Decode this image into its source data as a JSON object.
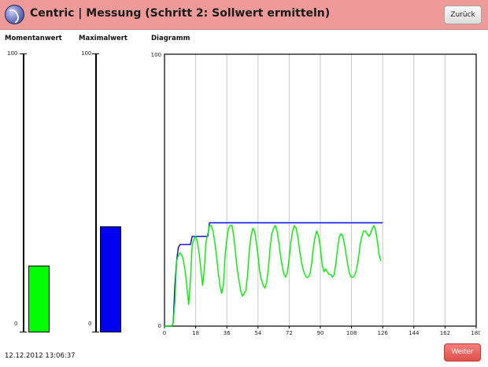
{
  "header": {
    "title": "Centric | Messung (Schritt 2: Sollwert ermitteln)",
    "back_label": "Zurück",
    "logo_icon": "centric-logo-icon",
    "color": "#ee9a98"
  },
  "gauges": {
    "current": {
      "label": "Momentanwert",
      "max_label": "100",
      "min_label": "0",
      "value": 24,
      "color": "#00ff00"
    },
    "maximum": {
      "label": "Maximalwert",
      "max_label": "100",
      "min_label": "0",
      "value": 38,
      "color": "#0000ee"
    }
  },
  "chart_data": {
    "type": "line",
    "title": "Diagramm",
    "xlim": [
      0,
      180
    ],
    "ylim": [
      0,
      100
    ],
    "x_ticks": [
      "0",
      "18",
      "36",
      "54",
      "72",
      "90",
      "108",
      "126",
      "144",
      "162",
      "180"
    ],
    "y_tick_labels": [
      "100",
      "0"
    ],
    "grid": "vertical",
    "series": [
      {
        "color": "#0000ee",
        "points": [
          [
            0,
            0
          ],
          [
            4,
            0
          ],
          [
            5,
            1
          ],
          [
            6,
            15
          ],
          [
            7,
            24
          ],
          [
            8,
            29
          ],
          [
            9,
            30
          ],
          [
            10,
            30
          ],
          [
            15,
            30
          ],
          [
            16,
            33
          ],
          [
            17,
            33
          ],
          [
            25,
            33
          ],
          [
            26,
            38
          ],
          [
            27,
            38
          ],
          [
            126,
            38
          ]
        ]
      },
      {
        "color": "#00ee00",
        "points": [
          [
            0,
            0
          ],
          [
            4,
            0
          ],
          [
            5,
            1
          ],
          [
            6,
            9
          ],
          [
            7,
            24
          ],
          [
            8,
            26
          ],
          [
            9,
            27
          ],
          [
            10,
            26
          ],
          [
            11,
            24
          ],
          [
            12,
            20
          ],
          [
            13,
            14
          ],
          [
            14,
            8
          ],
          [
            15,
            17
          ],
          [
            16,
            30
          ],
          [
            17,
            32
          ],
          [
            18,
            33
          ],
          [
            19,
            31
          ],
          [
            20,
            27
          ],
          [
            21,
            21
          ],
          [
            22,
            15
          ],
          [
            23,
            21
          ],
          [
            24,
            31
          ],
          [
            25,
            34
          ],
          [
            26,
            37
          ],
          [
            27,
            37
          ],
          [
            28,
            35
          ],
          [
            29,
            31
          ],
          [
            30,
            26
          ],
          [
            31,
            20
          ],
          [
            32,
            15
          ],
          [
            33,
            12
          ],
          [
            34,
            15
          ],
          [
            35,
            26
          ],
          [
            36,
            32
          ],
          [
            37,
            36
          ],
          [
            38,
            37
          ],
          [
            39,
            37
          ],
          [
            40,
            33
          ],
          [
            41,
            27
          ],
          [
            42,
            21
          ],
          [
            43,
            17
          ],
          [
            44,
            13
          ],
          [
            45,
            11
          ],
          [
            46,
            12
          ],
          [
            47,
            13
          ],
          [
            48,
            19
          ],
          [
            49,
            28
          ],
          [
            50,
            33
          ],
          [
            51,
            36
          ],
          [
            52,
            35
          ],
          [
            53,
            31
          ],
          [
            54,
            26
          ],
          [
            55,
            20
          ],
          [
            56,
            17
          ],
          [
            57,
            15
          ],
          [
            58,
            14
          ],
          [
            59,
            16
          ],
          [
            60,
            21
          ],
          [
            61,
            29
          ],
          [
            62,
            34
          ],
          [
            63,
            36
          ],
          [
            64,
            37
          ],
          [
            65,
            35
          ],
          [
            66,
            31
          ],
          [
            67,
            26
          ],
          [
            68,
            22
          ],
          [
            69,
            19
          ],
          [
            70,
            18
          ],
          [
            71,
            20
          ],
          [
            72,
            25
          ],
          [
            73,
            31
          ],
          [
            74,
            35
          ],
          [
            75,
            37
          ],
          [
            76,
            36
          ],
          [
            77,
            33
          ],
          [
            78,
            28
          ],
          [
            79,
            24
          ],
          [
            80,
            21
          ],
          [
            81,
            19
          ],
          [
            82,
            18
          ],
          [
            83,
            18
          ],
          [
            84,
            19
          ],
          [
            85,
            23
          ],
          [
            86,
            29
          ],
          [
            87,
            33
          ],
          [
            88,
            35
          ],
          [
            89,
            33
          ],
          [
            90,
            29
          ],
          [
            91,
            23
          ],
          [
            92,
            20
          ],
          [
            93,
            21
          ],
          [
            94,
            20
          ],
          [
            95,
            19
          ],
          [
            96,
            19
          ],
          [
            97,
            18
          ],
          [
            98,
            19
          ],
          [
            99,
            23
          ],
          [
            100,
            29
          ],
          [
            101,
            33
          ],
          [
            102,
            34
          ],
          [
            103,
            33
          ],
          [
            104,
            30
          ],
          [
            105,
            26
          ],
          [
            106,
            22
          ],
          [
            107,
            19
          ],
          [
            108,
            18
          ],
          [
            109,
            18
          ],
          [
            110,
            19
          ],
          [
            111,
            21
          ],
          [
            112,
            25
          ],
          [
            113,
            30
          ],
          [
            114,
            33
          ],
          [
            115,
            35
          ],
          [
            116,
            35
          ],
          [
            117,
            34
          ],
          [
            118,
            33
          ],
          [
            119,
            34
          ],
          [
            120,
            36
          ],
          [
            121,
            37
          ],
          [
            122,
            35
          ],
          [
            123,
            31
          ],
          [
            124,
            26
          ],
          [
            125,
            24
          ]
        ]
      }
    ]
  },
  "footer": {
    "datetime": "12.12.2012 13:06:37",
    "next_label": "Weiter"
  }
}
